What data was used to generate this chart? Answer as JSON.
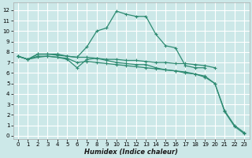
{
  "line_color": "#2e8b72",
  "bg_color": "#cce8e8",
  "grid_color": "#ffffff",
  "xlabel": "Humidex (Indice chaleur)",
  "xlim": [
    -0.5,
    23.5
  ],
  "ylim": [
    -0.3,
    12.7
  ],
  "xticks": [
    0,
    1,
    2,
    3,
    4,
    5,
    6,
    7,
    8,
    9,
    10,
    11,
    12,
    13,
    14,
    15,
    16,
    17,
    18,
    19,
    20,
    21,
    22,
    23
  ],
  "yticks": [
    0,
    1,
    2,
    3,
    4,
    5,
    6,
    7,
    8,
    9,
    10,
    11,
    12
  ],
  "series": [
    {
      "x": [
        0,
        1,
        2,
        3,
        4,
        5,
        6,
        7,
        8,
        9,
        10,
        11,
        12,
        13,
        14,
        15,
        16,
        17,
        18,
        19
      ],
      "y": [
        7.6,
        7.3,
        7.8,
        7.8,
        7.8,
        7.6,
        7.5,
        8.5,
        10.0,
        10.3,
        11.9,
        11.6,
        11.4,
        11.4,
        9.7,
        8.6,
        8.4,
        6.7,
        6.5,
        6.5
      ]
    },
    {
      "x": [
        0,
        1,
        2,
        3,
        4,
        5,
        6,
        7,
        8,
        9,
        10,
        11,
        12,
        13,
        14,
        15,
        16,
        17,
        18,
        19,
        20
      ],
      "y": [
        7.6,
        7.3,
        7.8,
        7.8,
        7.7,
        7.6,
        7.5,
        7.5,
        7.4,
        7.3,
        7.3,
        7.2,
        7.2,
        7.1,
        7.0,
        7.0,
        6.9,
        6.9,
        6.8,
        6.7,
        6.5
      ]
    },
    {
      "x": [
        0,
        1,
        2,
        3,
        4,
        5,
        6,
        7,
        8,
        9,
        10,
        11,
        12,
        13,
        14,
        15,
        16,
        17,
        18,
        19,
        20,
        21,
        22,
        23
      ],
      "y": [
        7.6,
        7.3,
        7.6,
        7.6,
        7.5,
        7.4,
        7.0,
        7.1,
        7.0,
        6.9,
        6.8,
        6.7,
        6.6,
        6.5,
        6.4,
        6.3,
        6.2,
        6.0,
        5.9,
        5.7,
        5.0,
        2.4,
        1.0,
        0.3
      ]
    },
    {
      "x": [
        0,
        1,
        2,
        3,
        4,
        5,
        6,
        7,
        8,
        9,
        10,
        11,
        12,
        13,
        14,
        15,
        16,
        17,
        18,
        19,
        20,
        21,
        22,
        23
      ],
      "y": [
        7.6,
        7.3,
        7.5,
        7.6,
        7.5,
        7.3,
        6.5,
        7.3,
        7.4,
        7.2,
        7.0,
        6.9,
        6.8,
        6.8,
        6.5,
        6.3,
        6.2,
        6.1,
        5.9,
        5.6,
        5.0,
        2.3,
        0.9,
        0.2
      ]
    }
  ]
}
